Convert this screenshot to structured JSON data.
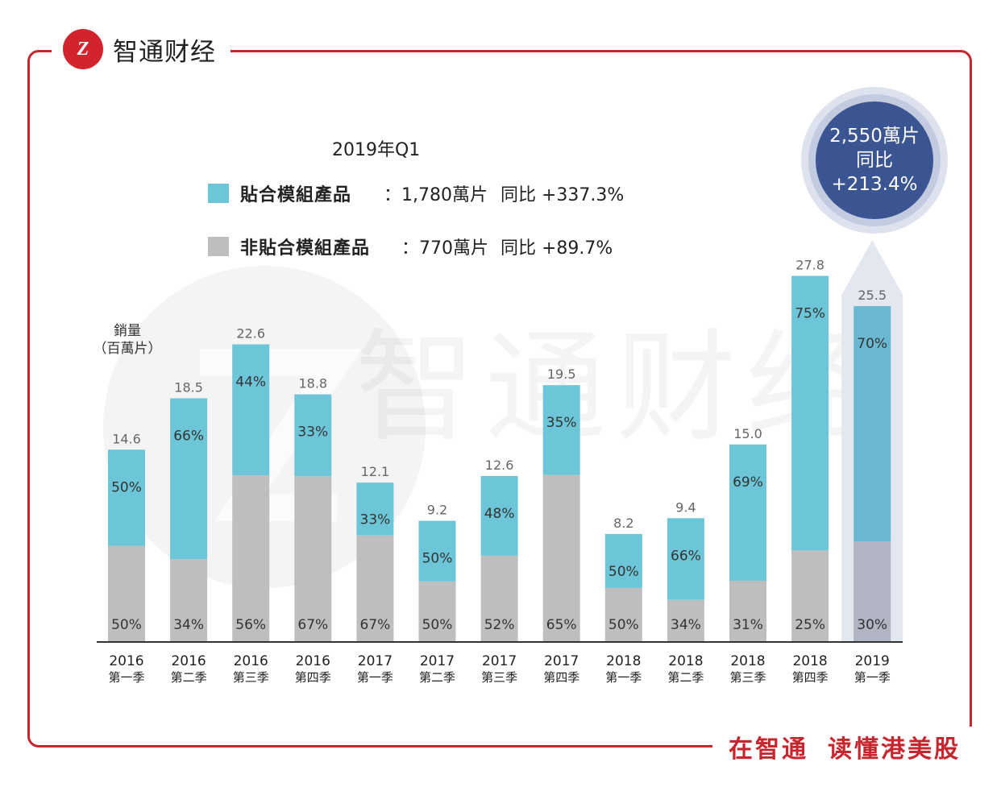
{
  "brand": {
    "logo_text": "Z",
    "name": "智通财经"
  },
  "slogan": {
    "part1": "在智通",
    "part2": "读懂港美股"
  },
  "watermark": "智通财经",
  "legend": {
    "title": "2019年Q1",
    "items": [
      {
        "name": "貼合模組產品",
        "value": "：1,780萬片",
        "yoy": "同比 +337.3%",
        "color": "#6dc5d8"
      },
      {
        "name": "非貼合模組產品",
        "value": "：770萬片",
        "yoy": "同比 +89.7%",
        "color": "#bebebe"
      }
    ]
  },
  "bubble": {
    "line1": "2,550萬片",
    "line2": "同比",
    "line3": "+213.4%"
  },
  "chart_data": {
    "type": "bar",
    "stacked": true,
    "ylabel": "銷量\n（百萬片）",
    "ylabel_line1": "銷量",
    "ylabel_line2": "（百萬片）",
    "ylim": [
      0,
      30
    ],
    "categories": [
      [
        "2016",
        "第一季"
      ],
      [
        "2016",
        "第二季"
      ],
      [
        "2016",
        "第三季"
      ],
      [
        "2016",
        "第四季"
      ],
      [
        "2017",
        "第一季"
      ],
      [
        "2017",
        "第二季"
      ],
      [
        "2017",
        "第三季"
      ],
      [
        "2017",
        "第四季"
      ],
      [
        "2018",
        "第一季"
      ],
      [
        "2018",
        "第二季"
      ],
      [
        "2018",
        "第三季"
      ],
      [
        "2018",
        "第四季"
      ],
      [
        "2019",
        "第一季"
      ]
    ],
    "totals": [
      14.6,
      18.5,
      22.6,
      18.8,
      12.1,
      9.2,
      12.6,
      19.5,
      8.2,
      9.4,
      15.0,
      27.8,
      25.5
    ],
    "total_labels": [
      "14.6",
      "18.5",
      "22.6",
      "18.8",
      "12.1",
      "9.2",
      "12.6",
      "19.5",
      "8.2",
      "9.4",
      "15.0",
      "27.8",
      "25.5"
    ],
    "series": [
      {
        "name": "非貼合模組產品",
        "color": "#bebebe",
        "shares": [
          50,
          34,
          56,
          67,
          67,
          50,
          52,
          65,
          50,
          34,
          31,
          25,
          30
        ],
        "labels": [
          "50%",
          "34%",
          "56%",
          "67%",
          "67%",
          "50%",
          "52%",
          "65%",
          "50%",
          "34%",
          "31%",
          "25%",
          "30%"
        ]
      },
      {
        "name": "貼合模組產品",
        "color": "#6dc5d8",
        "shares": [
          50,
          66,
          44,
          33,
          33,
          50,
          48,
          35,
          50,
          66,
          69,
          75,
          70
        ],
        "labels": [
          "50%",
          "66%",
          "44%",
          "33%",
          "33%",
          "50%",
          "48%",
          "35%",
          "50%",
          "66%",
          "69%",
          "75%",
          "70%"
        ]
      }
    ],
    "highlight_index": 12,
    "highlight_colors": {
      "bottom": "#b0b4c3",
      "top": "#6ab8d2",
      "arrow": "#e3e7f0"
    }
  }
}
